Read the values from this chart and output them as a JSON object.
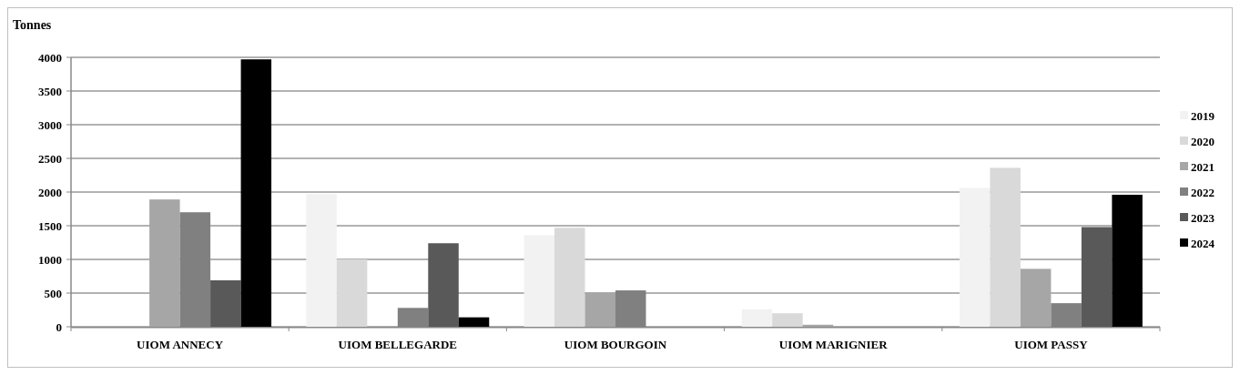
{
  "chart_data": {
    "type": "bar",
    "ylabel": "Tonnes",
    "categories": [
      "UIOM ANNECY",
      "UIOM BELLEGARDE",
      "UIOM BOURGOIN",
      "UIOM MARIGNIER",
      "UIOM PASSY"
    ],
    "series": [
      {
        "name": "2019",
        "color": "#f2f2f2",
        "values": [
          0,
          1970,
          1360,
          260,
          2060
        ]
      },
      {
        "name": "2020",
        "color": "#d9d9d9",
        "values": [
          0,
          1000,
          1470,
          200,
          2360
        ]
      },
      {
        "name": "2021",
        "color": "#a6a6a6",
        "values": [
          1890,
          0,
          510,
          30,
          860
        ]
      },
      {
        "name": "2022",
        "color": "#808080",
        "values": [
          1700,
          280,
          540,
          0,
          350
        ]
      },
      {
        "name": "2023",
        "color": "#595959",
        "values": [
          690,
          1240,
          0,
          0,
          1480
        ]
      },
      {
        "name": "2024",
        "color": "#000000",
        "values": [
          3970,
          140,
          0,
          0,
          1960
        ]
      }
    ],
    "ylim": [
      0,
      4000
    ],
    "yticks": [
      0,
      500,
      1000,
      1500,
      2000,
      2500,
      3000,
      3500,
      4000
    ],
    "grid": "y",
    "legend": "right"
  }
}
